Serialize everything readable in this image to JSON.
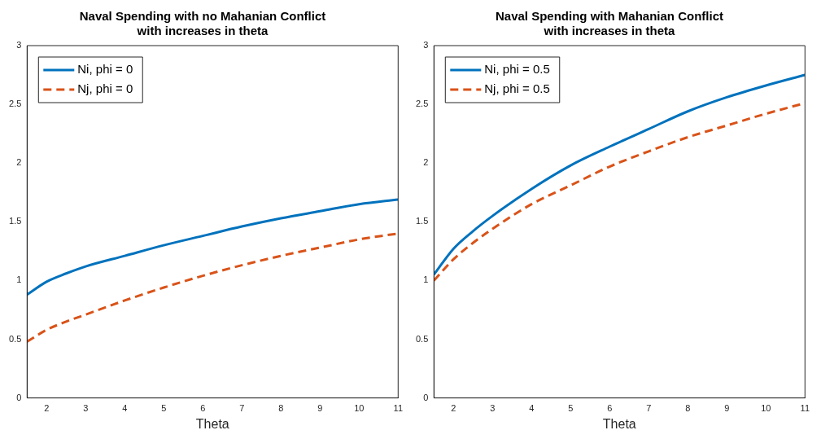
{
  "chart_data": [
    {
      "type": "line",
      "title": "Naval Spending with no Mahanian Conflict\nwith increases in theta",
      "xlabel": "Theta",
      "x": [
        1.5,
        2,
        2.5,
        3,
        4,
        5,
        6,
        7,
        8,
        9,
        10,
        11
      ],
      "xlim": [
        1.5,
        11
      ],
      "xticks": [
        2,
        3,
        4,
        5,
        6,
        7,
        8,
        9,
        10,
        11
      ],
      "ylim": [
        0,
        3
      ],
      "yticks": [
        0,
        0.5,
        1,
        1.5,
        2,
        2.5,
        3
      ],
      "grid": false,
      "legend": "top left",
      "marker": "none",
      "series": [
        {
          "name": "Ni, phi = 0",
          "color": "#0072bd",
          "line_style": "solid",
          "values": [
            0.88,
            0.99,
            1.06,
            1.12,
            1.21,
            1.3,
            1.38,
            1.46,
            1.53,
            1.59,
            1.65,
            1.69
          ]
        },
        {
          "name": "Nj, phi = 0",
          "color": "#d95319",
          "line_style": "dashed",
          "values": [
            0.48,
            0.58,
            0.65,
            0.71,
            0.83,
            0.94,
            1.04,
            1.13,
            1.21,
            1.28,
            1.35,
            1.4
          ]
        }
      ]
    },
    {
      "type": "line",
      "title": "Naval Spending with Mahanian Conflict\nwith increases in theta",
      "xlabel": "Theta",
      "x": [
        1.5,
        2,
        2.5,
        3,
        4,
        5,
        6,
        7,
        8,
        9,
        10,
        11
      ],
      "xlim": [
        1.5,
        11
      ],
      "xticks": [
        2,
        3,
        4,
        5,
        6,
        7,
        8,
        9,
        10,
        11
      ],
      "ylim": [
        0,
        3
      ],
      "yticks": [
        0,
        0.5,
        1,
        1.5,
        2,
        2.5,
        3
      ],
      "grid": false,
      "legend": "top left",
      "marker": "none",
      "series": [
        {
          "name": "Ni, phi = 0.5",
          "color": "#0072bd",
          "line_style": "solid",
          "values": [
            1.05,
            1.27,
            1.42,
            1.55,
            1.78,
            1.98,
            2.14,
            2.29,
            2.44,
            2.56,
            2.66,
            2.75
          ]
        },
        {
          "name": "Nj, phi = 0.5",
          "color": "#d95319",
          "line_style": "dashed",
          "values": [
            1.0,
            1.18,
            1.32,
            1.44,
            1.65,
            1.81,
            1.97,
            2.1,
            2.22,
            2.32,
            2.42,
            2.51
          ]
        }
      ]
    }
  ]
}
